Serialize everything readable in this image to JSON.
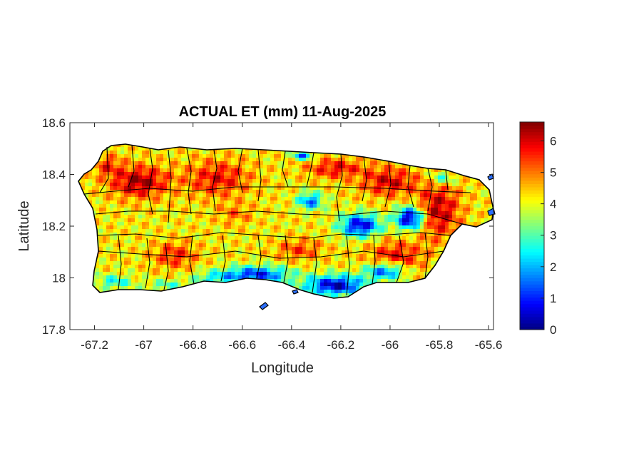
{
  "chart_data": {
    "type": "heatmap",
    "title": "ACTUAL ET (mm) 11-Aug-2025",
    "xlabel": "Longitude",
    "ylabel": "Latitude",
    "xlim": [
      -67.3,
      -65.58
    ],
    "ylim": [
      17.8,
      18.6
    ],
    "xticks": [
      -67.2,
      -67,
      -66.8,
      -66.6,
      -66.4,
      -66.2,
      -66,
      -65.8,
      -65.6
    ],
    "xtick_labels": [
      "-67.2",
      "-67",
      "-66.8",
      "-66.6",
      "-66.4",
      "-66.2",
      "-66",
      "-65.8",
      "-65.6"
    ],
    "yticks": [
      17.8,
      18,
      18.2,
      18.4,
      18.6
    ],
    "ytick_labels": [
      "17.8",
      "18",
      "18.2",
      "18.4",
      "18.6"
    ],
    "colorbar": {
      "colormap": "jet",
      "clim": [
        0,
        6.6
      ],
      "ticks": [
        0,
        1,
        2,
        3,
        4,
        5,
        6
      ],
      "tick_labels": [
        "0",
        "1",
        "2",
        "3",
        "4",
        "5",
        "6"
      ]
    },
    "grid": false
  }
}
